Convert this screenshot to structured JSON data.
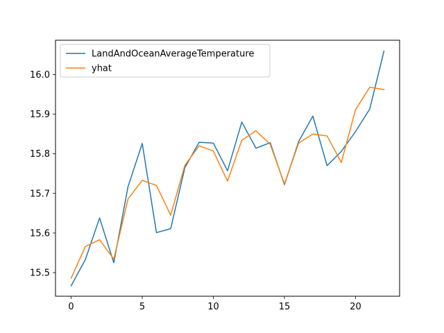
{
  "chart_data": {
    "type": "line",
    "title": "",
    "xlabel": "",
    "ylabel": "",
    "xlim": [
      -1.1,
      23.1
    ],
    "ylim": [
      15.4405,
      16.0865
    ],
    "xticks": [
      0,
      5,
      10,
      15,
      20
    ],
    "xtick_labels": [
      "0",
      "5",
      "10",
      "15",
      "20"
    ],
    "yticks": [
      15.5,
      15.6,
      15.7,
      15.8,
      15.9,
      16.0
    ],
    "ytick_labels": [
      "15.5",
      "15.6",
      "15.7",
      "15.8",
      "15.9",
      "16.0"
    ],
    "grid": false,
    "legend_position": "upper-left",
    "x": [
      0,
      1,
      2,
      3,
      4,
      5,
      6,
      7,
      8,
      9,
      10,
      11,
      12,
      13,
      14,
      15,
      16,
      17,
      18,
      19,
      20,
      21,
      22
    ],
    "series": [
      {
        "name": "LandAndOceanAverageTemperature",
        "color": "#1f77b4",
        "values": [
          15.467,
          15.533,
          15.638,
          15.525,
          15.717,
          15.826,
          15.601,
          15.611,
          15.765,
          15.829,
          15.827,
          15.757,
          15.88,
          15.814,
          15.828,
          15.722,
          15.831,
          15.895,
          15.77,
          15.806,
          15.856,
          15.913,
          16.059
        ]
      },
      {
        "name": "yhat",
        "color": "#ff7f0e",
        "values": [
          15.486,
          15.566,
          15.583,
          15.534,
          15.686,
          15.733,
          15.72,
          15.645,
          15.771,
          15.82,
          15.807,
          15.731,
          15.834,
          15.858,
          15.824,
          15.724,
          15.827,
          15.85,
          15.845,
          15.778,
          15.911,
          15.968,
          15.962
        ]
      }
    ]
  }
}
